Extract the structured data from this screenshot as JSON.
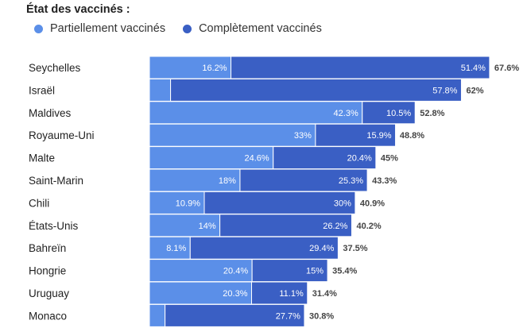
{
  "chart_data": {
    "type": "bar",
    "orientation": "horizontal",
    "stacked": true,
    "title": "État des vaccinés :",
    "legend_position": "top-left",
    "grid": false,
    "unit": "%",
    "categories": [
      "Seychelles",
      "Israël",
      "Maldives",
      "Royaume-Uni",
      "Malte",
      "Saint-Marin",
      "Chili",
      "États-Unis",
      "Bahreïn",
      "Hongrie",
      "Uruguay",
      "Monaco"
    ],
    "series": [
      {
        "name": "Partiellement vaccinés",
        "color": "#5b8fe8",
        "values": [
          16.2,
          4.2,
          42.3,
          33,
          24.6,
          18,
          10.9,
          14,
          8.1,
          20.4,
          20.3,
          3.1
        ],
        "labels": [
          "16.2%",
          "",
          "42.3%",
          "33%",
          "24.6%",
          "18%",
          "10.9%",
          "14%",
          "8.1%",
          "20.4%",
          "20.3%",
          ""
        ]
      },
      {
        "name": "Complètement vaccinés",
        "color": "#3a5fc4",
        "values": [
          51.4,
          57.8,
          10.5,
          15.9,
          20.4,
          25.3,
          30,
          26.2,
          29.4,
          15,
          11.1,
          27.7
        ],
        "labels": [
          "51.4%",
          "57.8%",
          "10.5%",
          "15.9%",
          "20.4%",
          "25.3%",
          "30%",
          "26.2%",
          "29.4%",
          "15%",
          "11.1%",
          "27.7%"
        ]
      }
    ],
    "totals": [
      67.6,
      62,
      52.8,
      48.8,
      45,
      43.3,
      40.9,
      40.2,
      37.5,
      35.4,
      31.4,
      30.8
    ],
    "total_labels": [
      "67.6%",
      "62%",
      "52.8%",
      "48.8%",
      "45%",
      "43.3%",
      "40.9%",
      "40.2%",
      "37.5%",
      "35.4%",
      "31.4%",
      "30.8%"
    ]
  }
}
